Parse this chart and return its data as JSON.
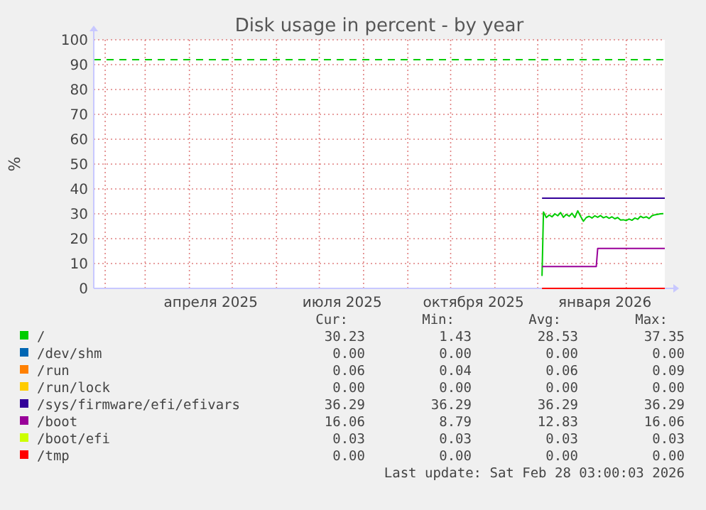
{
  "chart_data": {
    "type": "line",
    "title": "Disk usage in percent - by year",
    "ylabel": "%",
    "xlim": [
      "2025-01-24",
      "2026-02-28"
    ],
    "xticks": [
      {
        "value": "2025-04-16",
        "label": "апреля 2025"
      },
      {
        "value": "2025-07-17",
        "label": "июля 2025"
      },
      {
        "value": "2025-10-17",
        "label": "октября 2025"
      },
      {
        "value": "2026-01-17",
        "label": "января 2026"
      }
    ],
    "ylim": [
      0,
      100
    ],
    "yticks": [
      0,
      10,
      20,
      30,
      40,
      50,
      60,
      70,
      80,
      90,
      100
    ],
    "grid": true,
    "legend": "bottom",
    "ref_lines": [
      {
        "axis": "y",
        "value": 92,
        "color": "#00cc00",
        "line_style": "dashed"
      }
    ],
    "series": [
      {
        "name": "/",
        "color": "#00cc00",
        "x": [
          "2025-12-04",
          "2025-12-05",
          "2025-12-07",
          "2025-12-09",
          "2025-12-11",
          "2025-12-13",
          "2025-12-15",
          "2025-12-17",
          "2025-12-19",
          "2025-12-21",
          "2025-12-23",
          "2025-12-25",
          "2025-12-27",
          "2025-12-29",
          "2025-12-31",
          "2026-01-02",
          "2026-01-04",
          "2026-01-06",
          "2026-01-08",
          "2026-01-10",
          "2026-01-12",
          "2026-01-14",
          "2026-01-16",
          "2026-01-18",
          "2026-01-20",
          "2026-01-22",
          "2026-01-24",
          "2026-01-26",
          "2026-01-28",
          "2026-01-30",
          "2026-02-01",
          "2026-02-03",
          "2026-02-05",
          "2026-02-07",
          "2026-02-09",
          "2026-02-11",
          "2026-02-13",
          "2026-02-15",
          "2026-02-17",
          "2026-02-19",
          "2026-02-21",
          "2026-02-23",
          "2026-02-25",
          "2026-02-27"
        ],
        "values": [
          5,
          30.7,
          28.5,
          29.5,
          28.8,
          30,
          29.2,
          30.5,
          28.6,
          29.8,
          29,
          30.2,
          28.5,
          31.2,
          29,
          27,
          28.5,
          29,
          28.3,
          29.2,
          28.6,
          29.3,
          28.4,
          28.9,
          28.2,
          28.8,
          28,
          28.5,
          27.5,
          27.6,
          27.3,
          27.9,
          27.4,
          28.3,
          27.8,
          29,
          28.4,
          28.8,
          28.1,
          29.2,
          29.6,
          29.8,
          30,
          30.1
        ]
      },
      {
        "name": "/dev/shm",
        "color": "#0066b3"
      },
      {
        "name": "/run",
        "color": "#ff8000"
      },
      {
        "name": "/run/lock",
        "color": "#ffcc00"
      },
      {
        "name": "/sys/firmware/efi/efivars",
        "color": "#330099",
        "x": [
          "2025-12-04",
          "2026-02-28"
        ],
        "values": [
          36.3,
          36.3
        ]
      },
      {
        "name": "/boot",
        "color": "#990099",
        "x": [
          "2025-12-04",
          "2026-01-11",
          "2026-01-12",
          "2026-02-28"
        ],
        "values": [
          8.8,
          8.8,
          16.1,
          16.1
        ]
      },
      {
        "name": "/boot/efi",
        "color": "#ccff00"
      },
      {
        "name": "/tmp",
        "color": "#ff0000",
        "x": [
          "2025-12-04",
          "2026-02-28"
        ],
        "values": [
          0,
          0
        ]
      }
    ],
    "annotations": [
      "Cur:",
      "Min:",
      "Avg:",
      "Max:",
      "30.23",
      "1.43",
      "28.53",
      "37.35",
      "0.00",
      "0.00",
      "0.00",
      "0.00",
      "0.06",
      "0.04",
      "0.06",
      "0.09",
      "0.00",
      "0.00",
      "0.00",
      "0.00",
      "36.29",
      "36.29",
      "36.29",
      "36.29",
      "16.06",
      "8.79",
      "12.83",
      "16.06",
      "0.03",
      "0.03",
      "0.03",
      "0.03",
      "0.00",
      "0.00",
      "0.00",
      "0.00",
      "Last update: Sat Feb 28 03:00:03 2026"
    ]
  }
}
